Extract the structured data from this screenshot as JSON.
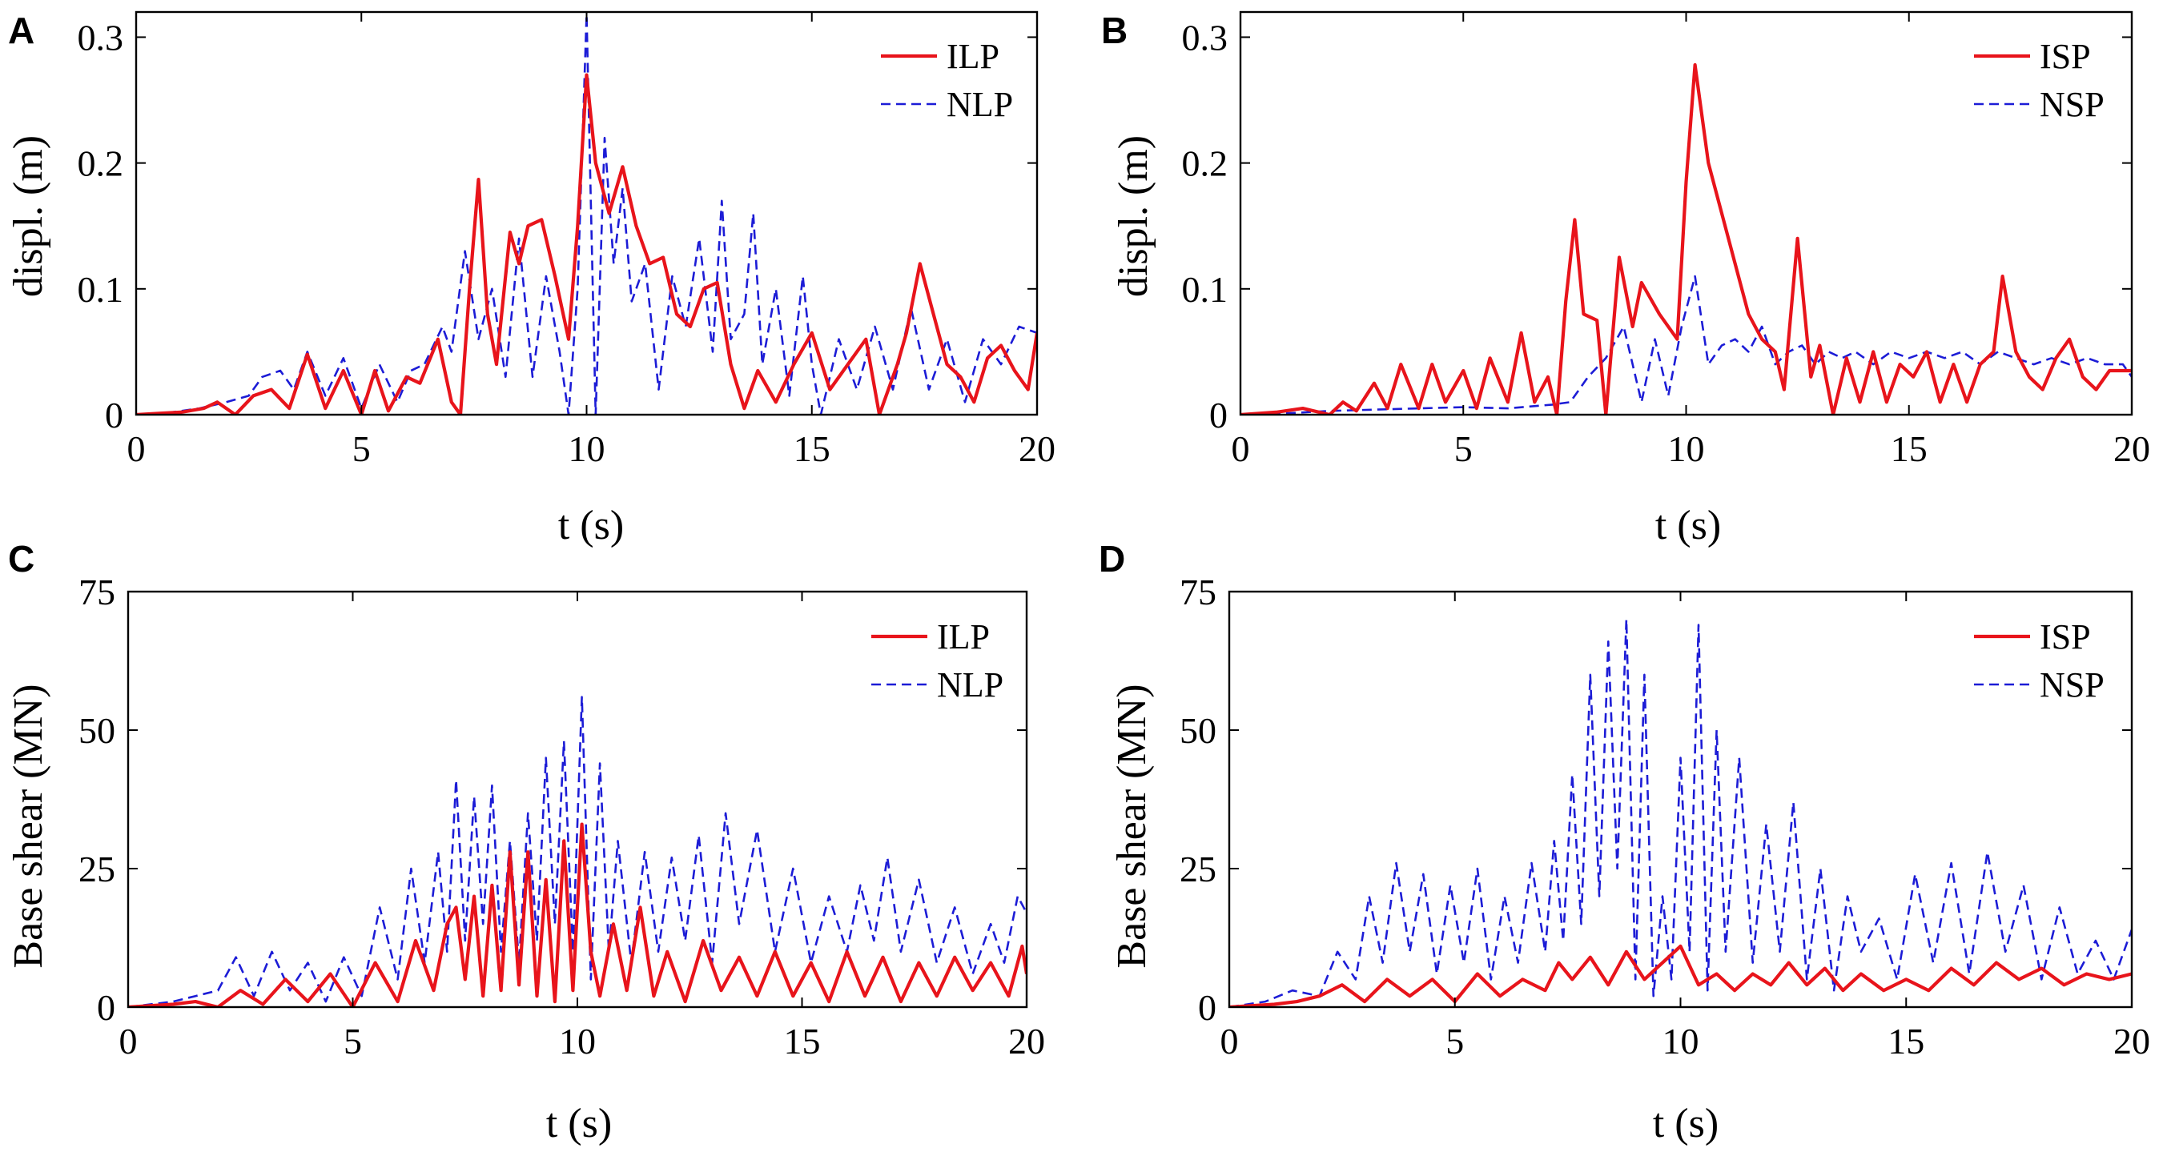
{
  "colors": {
    "series_solid": "#e8141b",
    "series_dashed": "#1c1cd6",
    "axes": "#000000",
    "background": "#ffffff"
  },
  "chart_data": [
    {
      "panel": "A",
      "type": "line",
      "xlabel": "t (s)",
      "ylabel": "displ. (m)",
      "xlim": [
        0,
        20
      ],
      "ylim": [
        0,
        0.32
      ],
      "xticks": [
        0,
        5,
        10,
        15,
        20
      ],
      "xtick_labels": [
        "0",
        "5",
        "10",
        "15",
        "20"
      ],
      "yticks": [
        0,
        0.1,
        0.2,
        0.3
      ],
      "ytick_labels": [
        "0",
        "0.1",
        "0.2",
        "0.3"
      ],
      "legend_position": "top-right",
      "series": [
        {
          "name": "ILP",
          "style": "solid",
          "color": "#e8141b",
          "x": [
            0,
            0.5,
            1.0,
            1.5,
            1.8,
            2.2,
            2.6,
            3.0,
            3.4,
            3.8,
            4.2,
            4.6,
            5.0,
            5.3,
            5.6,
            6.0,
            6.3,
            6.7,
            7.0,
            7.2,
            7.4,
            7.6,
            7.8,
            8.0,
            8.3,
            8.5,
            8.7,
            9.0,
            9.3,
            9.6,
            9.8,
            10.0,
            10.2,
            10.5,
            10.8,
            11.1,
            11.4,
            11.7,
            12.0,
            12.3,
            12.6,
            12.9,
            13.2,
            13.5,
            13.8,
            14.2,
            14.6,
            15.0,
            15.4,
            15.8,
            16.2,
            16.5,
            16.9,
            17.1,
            17.4,
            17.7,
            18.0,
            18.3,
            18.6,
            18.9,
            19.2,
            19.5,
            19.8,
            20.0
          ],
          "y": [
            0,
            0.001,
            0.002,
            0.005,
            0.01,
            0.0,
            0.015,
            0.02,
            0.005,
            0.048,
            0.005,
            0.035,
            0.0,
            0.035,
            0.003,
            0.03,
            0.025,
            0.06,
            0.01,
            0.0,
            0.1,
            0.187,
            0.08,
            0.04,
            0.145,
            0.12,
            0.15,
            0.155,
            0.11,
            0.06,
            0.15,
            0.27,
            0.2,
            0.16,
            0.197,
            0.15,
            0.12,
            0.125,
            0.08,
            0.07,
            0.1,
            0.105,
            0.04,
            0.005,
            0.035,
            0.01,
            0.04,
            0.065,
            0.02,
            0.04,
            0.06,
            0.0,
            0.04,
            0.065,
            0.12,
            0.08,
            0.04,
            0.03,
            0.01,
            0.045,
            0.055,
            0.035,
            0.02,
            0.065
          ]
        },
        {
          "name": "NLP",
          "style": "dashed",
          "color": "#1c1cd6",
          "x": [
            0,
            0.8,
            1.4,
            2.0,
            2.5,
            2.8,
            3.2,
            3.5,
            3.8,
            4.2,
            4.6,
            5.0,
            5.4,
            5.8,
            6.1,
            6.4,
            6.8,
            7.0,
            7.3,
            7.6,
            7.9,
            8.2,
            8.5,
            8.8,
            9.1,
            9.4,
            9.6,
            9.8,
            10.0,
            10.2,
            10.4,
            10.6,
            10.8,
            11.0,
            11.3,
            11.6,
            11.9,
            12.2,
            12.5,
            12.8,
            13.0,
            13.2,
            13.5,
            13.7,
            13.9,
            14.2,
            14.5,
            14.8,
            15.0,
            15.2,
            15.6,
            16.0,
            16.4,
            16.8,
            17.2,
            17.6,
            18.0,
            18.4,
            18.8,
            19.2,
            19.6,
            20.0
          ],
          "y": [
            0,
            0.002,
            0.005,
            0.01,
            0.015,
            0.03,
            0.035,
            0.02,
            0.05,
            0.015,
            0.045,
            0.005,
            0.04,
            0.01,
            0.035,
            0.04,
            0.07,
            0.05,
            0.13,
            0.06,
            0.1,
            0.03,
            0.14,
            0.03,
            0.11,
            0.05,
            0.0,
            0.1,
            0.318,
            0.0,
            0.22,
            0.12,
            0.18,
            0.09,
            0.12,
            0.02,
            0.11,
            0.07,
            0.14,
            0.05,
            0.17,
            0.06,
            0.08,
            0.16,
            0.04,
            0.1,
            0.015,
            0.11,
            0.04,
            0.0,
            0.06,
            0.02,
            0.07,
            0.02,
            0.085,
            0.02,
            0.06,
            0.01,
            0.06,
            0.04,
            0.07,
            0.065
          ]
        }
      ]
    },
    {
      "panel": "B",
      "type": "line",
      "xlabel": "t (s)",
      "ylabel": "displ. (m)",
      "xlim": [
        0,
        20
      ],
      "ylim": [
        0,
        0.32
      ],
      "xticks": [
        0,
        5,
        10,
        15,
        20
      ],
      "xtick_labels": [
        "0",
        "5",
        "10",
        "15",
        "20"
      ],
      "yticks": [
        0,
        0.1,
        0.2,
        0.3
      ],
      "ytick_labels": [
        "0",
        "0.1",
        "0.2",
        "0.3"
      ],
      "legend_position": "top-right",
      "series": [
        {
          "name": "ISP",
          "style": "solid",
          "color": "#e8141b",
          "x": [
            0,
            0.8,
            1.4,
            2.0,
            2.3,
            2.6,
            3.0,
            3.3,
            3.6,
            4.0,
            4.3,
            4.6,
            5.0,
            5.3,
            5.6,
            6.0,
            6.3,
            6.6,
            6.9,
            7.1,
            7.3,
            7.5,
            7.7,
            8.0,
            8.2,
            8.5,
            8.8,
            9.0,
            9.4,
            9.8,
            10.0,
            10.2,
            10.5,
            10.8,
            11.1,
            11.4,
            11.7,
            12.0,
            12.2,
            12.5,
            12.8,
            13.0,
            13.3,
            13.6,
            13.9,
            14.2,
            14.5,
            14.8,
            15.1,
            15.4,
            15.7,
            16.0,
            16.3,
            16.6,
            16.9,
            17.1,
            17.4,
            17.7,
            18.0,
            18.3,
            18.6,
            18.9,
            19.2,
            19.5,
            20.0
          ],
          "y": [
            0,
            0.002,
            0.005,
            0.0,
            0.01,
            0.003,
            0.025,
            0.005,
            0.04,
            0.005,
            0.04,
            0.01,
            0.035,
            0.005,
            0.045,
            0.01,
            0.065,
            0.01,
            0.03,
            0.0,
            0.09,
            0.155,
            0.08,
            0.075,
            0.0,
            0.125,
            0.07,
            0.105,
            0.08,
            0.06,
            0.185,
            0.278,
            0.2,
            0.16,
            0.12,
            0.08,
            0.06,
            0.05,
            0.02,
            0.14,
            0.03,
            0.055,
            0.0,
            0.045,
            0.01,
            0.05,
            0.01,
            0.04,
            0.03,
            0.05,
            0.01,
            0.04,
            0.01,
            0.04,
            0.05,
            0.11,
            0.05,
            0.03,
            0.02,
            0.045,
            0.06,
            0.03,
            0.02,
            0.035,
            0.035
          ]
        },
        {
          "name": "NSP",
          "style": "dashed",
          "color": "#1c1cd6",
          "x": [
            0,
            1.0,
            2.0,
            3.0,
            4.0,
            5.0,
            6.0,
            7.0,
            7.4,
            7.8,
            8.2,
            8.6,
            9.0,
            9.3,
            9.6,
            9.9,
            10.2,
            10.5,
            10.8,
            11.1,
            11.4,
            11.7,
            12.0,
            12.3,
            12.6,
            12.9,
            13.2,
            13.5,
            13.8,
            14.2,
            14.6,
            15.0,
            15.4,
            15.8,
            16.2,
            16.6,
            17.0,
            17.4,
            17.8,
            18.2,
            18.6,
            19.0,
            19.4,
            19.8,
            20.0
          ],
          "y": [
            0,
            0.001,
            0.003,
            0.004,
            0.005,
            0.006,
            0.005,
            0.008,
            0.01,
            0.03,
            0.045,
            0.07,
            0.01,
            0.06,
            0.015,
            0.07,
            0.11,
            0.04,
            0.055,
            0.06,
            0.05,
            0.07,
            0.04,
            0.05,
            0.055,
            0.04,
            0.05,
            0.045,
            0.05,
            0.04,
            0.05,
            0.045,
            0.05,
            0.045,
            0.05,
            0.04,
            0.05,
            0.045,
            0.04,
            0.045,
            0.04,
            0.045,
            0.04,
            0.04,
            0.03
          ]
        }
      ]
    },
    {
      "panel": "C",
      "type": "line",
      "xlabel": "t (s)",
      "ylabel": "Base shear (MN)",
      "xlim": [
        0,
        20
      ],
      "ylim": [
        0,
        75
      ],
      "xticks": [
        0,
        5,
        10,
        15,
        20
      ],
      "xtick_labels": [
        "0",
        "5",
        "10",
        "15",
        "20"
      ],
      "yticks": [
        0,
        25,
        50,
        75
      ],
      "ytick_labels": [
        "0",
        "25",
        "50",
        "75"
      ],
      "legend_position": "top-right",
      "series": [
        {
          "name": "ILP",
          "style": "solid",
          "color": "#e8141b",
          "x": [
            0,
            1.0,
            1.5,
            2.0,
            2.5,
            3.0,
            3.5,
            4.0,
            4.5,
            5.0,
            5.5,
            6.0,
            6.4,
            6.8,
            7.1,
            7.3,
            7.5,
            7.7,
            7.9,
            8.1,
            8.3,
            8.5,
            8.7,
            8.9,
            9.1,
            9.3,
            9.5,
            9.7,
            9.9,
            10.1,
            10.3,
            10.5,
            10.8,
            11.1,
            11.4,
            11.7,
            12.0,
            12.4,
            12.8,
            13.2,
            13.6,
            14.0,
            14.4,
            14.8,
            15.2,
            15.6,
            16.0,
            16.4,
            16.8,
            17.2,
            17.6,
            18.0,
            18.4,
            18.8,
            19.2,
            19.6,
            19.9,
            20.0
          ],
          "y": [
            0,
            0.5,
            1,
            0,
            3,
            0.5,
            5,
            1,
            6,
            0,
            8,
            1,
            12,
            3,
            15,
            18,
            5,
            20,
            2,
            22,
            3,
            28,
            4,
            28,
            2,
            23,
            1,
            30,
            3,
            33,
            10,
            2,
            15,
            3,
            18,
            2,
            10,
            1,
            12,
            3,
            9,
            2,
            10,
            2,
            8,
            1,
            10,
            2,
            9,
            1,
            8,
            2,
            9,
            3,
            8,
            2,
            11,
            6
          ]
        },
        {
          "name": "NLP",
          "style": "dashed",
          "color": "#1c1cd6",
          "x": [
            0,
            1.0,
            1.5,
            2.0,
            2.4,
            2.8,
            3.2,
            3.6,
            4.0,
            4.4,
            4.8,
            5.2,
            5.6,
            6.0,
            6.3,
            6.6,
            6.9,
            7.1,
            7.3,
            7.5,
            7.7,
            7.9,
            8.1,
            8.3,
            8.5,
            8.7,
            8.9,
            9.1,
            9.3,
            9.5,
            9.7,
            9.9,
            10.1,
            10.3,
            10.5,
            10.7,
            10.9,
            11.2,
            11.5,
            11.8,
            12.1,
            12.4,
            12.7,
            13.0,
            13.3,
            13.6,
            14.0,
            14.4,
            14.8,
            15.2,
            15.6,
            16.0,
            16.3,
            16.6,
            16.9,
            17.2,
            17.6,
            18.0,
            18.4,
            18.8,
            19.2,
            19.5,
            19.8,
            20.0
          ],
          "y": [
            0,
            1,
            2,
            3,
            9,
            2,
            10,
            3,
            8,
            1,
            9,
            2,
            18,
            5,
            25,
            8,
            28,
            10,
            41,
            12,
            38,
            15,
            40,
            10,
            30,
            8,
            35,
            12,
            45,
            15,
            48,
            10,
            56,
            5,
            44,
            10,
            30,
            8,
            28,
            10,
            27,
            12,
            31,
            8,
            35,
            15,
            32,
            10,
            25,
            8,
            20,
            10,
            22,
            12,
            27,
            10,
            23,
            8,
            18,
            6,
            15,
            8,
            20,
            17
          ]
        }
      ]
    },
    {
      "panel": "D",
      "type": "line",
      "xlabel": "t (s)",
      "ylabel": "Base shear (MN)",
      "xlim": [
        0,
        20
      ],
      "ylim": [
        0,
        75
      ],
      "xticks": [
        0,
        5,
        10,
        15,
        20
      ],
      "xtick_labels": [
        "0",
        "5",
        "10",
        "15",
        "20"
      ],
      "yticks": [
        0,
        25,
        50,
        75
      ],
      "ytick_labels": [
        "0",
        "25",
        "50",
        "75"
      ],
      "legend_position": "top-right",
      "series": [
        {
          "name": "ISP",
          "style": "solid",
          "color": "#e8141b",
          "x": [
            0,
            1.0,
            1.5,
            2.0,
            2.5,
            3.0,
            3.5,
            4.0,
            4.5,
            5.0,
            5.5,
            6.0,
            6.5,
            7.0,
            7.3,
            7.6,
            8.0,
            8.4,
            8.8,
            9.2,
            9.6,
            10.0,
            10.4,
            10.8,
            11.2,
            11.6,
            12.0,
            12.4,
            12.8,
            13.2,
            13.6,
            14.0,
            14.5,
            15.0,
            15.5,
            16.0,
            16.5,
            17.0,
            17.5,
            18.0,
            18.5,
            19.0,
            19.5,
            20.0
          ],
          "y": [
            0,
            0.5,
            1,
            2,
            4,
            1,
            5,
            2,
            5,
            1,
            6,
            2,
            5,
            3,
            8,
            5,
            9,
            4,
            10,
            5,
            8,
            11,
            4,
            6,
            3,
            6,
            4,
            8,
            4,
            7,
            3,
            6,
            3,
            5,
            3,
            7,
            4,
            8,
            5,
            7,
            4,
            6,
            5,
            6
          ]
        },
        {
          "name": "NSP",
          "style": "dashed",
          "color": "#1c1cd6",
          "x": [
            0,
            0.8,
            1.4,
            2.0,
            2.4,
            2.8,
            3.1,
            3.4,
            3.7,
            4.0,
            4.3,
            4.6,
            4.9,
            5.2,
            5.5,
            5.8,
            6.1,
            6.4,
            6.7,
            7.0,
            7.2,
            7.4,
            7.6,
            7.8,
            8.0,
            8.2,
            8.4,
            8.6,
            8.8,
            9.0,
            9.2,
            9.4,
            9.6,
            9.8,
            10.0,
            10.2,
            10.4,
            10.6,
            10.8,
            11.0,
            11.3,
            11.6,
            11.9,
            12.2,
            12.5,
            12.8,
            13.1,
            13.4,
            13.7,
            14.0,
            14.4,
            14.8,
            15.2,
            15.6,
            16.0,
            16.4,
            16.8,
            17.2,
            17.6,
            18.0,
            18.4,
            18.8,
            19.2,
            19.6,
            20.0
          ],
          "y": [
            0,
            1,
            3,
            2,
            10,
            5,
            20,
            8,
            26,
            10,
            24,
            6,
            22,
            8,
            25,
            5,
            20,
            8,
            26,
            10,
            30,
            12,
            42,
            15,
            60,
            20,
            66,
            25,
            70,
            5,
            60,
            2,
            20,
            5,
            45,
            10,
            69,
            3,
            50,
            10,
            45,
            8,
            33,
            10,
            37,
            5,
            25,
            3,
            20,
            10,
            16,
            5,
            24,
            8,
            26,
            6,
            28,
            10,
            22,
            5,
            18,
            6,
            12,
            5,
            14
          ]
        }
      ]
    }
  ]
}
